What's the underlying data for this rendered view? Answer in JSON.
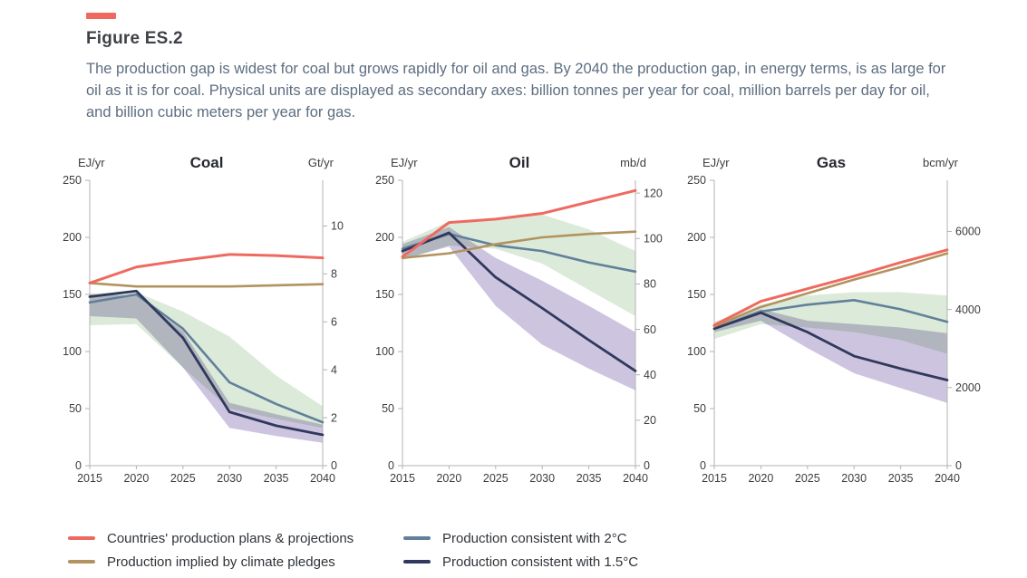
{
  "header": {
    "accent_color": "#ee6a5f",
    "title": "Figure ES.2",
    "description": "The production gap is widest for coal but grows rapidly for oil and gas. By 2040 the production gap, in energy terms, is as large for oil as it is for coal. Physical units are displayed as secondary axes: billion tonnes per year for coal, million barrels per day for oil, and billion cubic meters per year for gas."
  },
  "axis_style": {
    "line_color": "#b3b3b3",
    "text_color": "#3d3d3d"
  },
  "chart_data": [
    {
      "id": "coal",
      "type": "line",
      "title": "Coal",
      "left_axis": {
        "label": "EJ/yr",
        "ticks": [
          0,
          50,
          100,
          150,
          200,
          250
        ],
        "range": [
          0,
          250
        ]
      },
      "right_axis": {
        "label": "Gt/yr",
        "ticks": [
          0,
          2,
          4,
          6,
          8,
          10
        ],
        "ej_per_unit": 21.0
      },
      "x": {
        "years": [
          2015,
          2020,
          2025,
          2030,
          2035,
          2040
        ],
        "range": [
          2015,
          2040
        ]
      },
      "series": [
        {
          "key": "plans",
          "name": "Countries' production plans & projections",
          "color": "#ee6a60",
          "width": 3,
          "values": [
            160,
            174,
            180,
            185,
            184,
            182
          ]
        },
        {
          "key": "pledges",
          "name": "Production implied by climate pledges",
          "color": "#b2935f",
          "width": 2.6,
          "values": [
            160,
            157,
            157,
            157,
            158,
            159
          ]
        },
        {
          "key": "2c",
          "name": "Production consistent with 2°C",
          "color": "#62809b",
          "width": 2.6,
          "values": [
            143,
            150,
            120,
            73,
            54,
            38
          ]
        },
        {
          "key": "15c",
          "name": "Production consistent with 1.5°C",
          "color": "#30395c",
          "width": 2.8,
          "values": [
            148,
            153,
            112,
            47,
            35,
            27
          ]
        }
      ],
      "bands": [
        {
          "name": "2c-range",
          "color": "#dcead9",
          "upper": [
            151,
            152,
            135,
            113,
            79,
            52
          ],
          "lower": [
            123,
            124,
            86,
            50,
            41,
            33
          ]
        },
        {
          "name": "15c-range",
          "color": "#cdc5e0",
          "upper": [
            150,
            149,
            118,
            55,
            45,
            36
          ],
          "lower": [
            131,
            129,
            86,
            33,
            26,
            20
          ]
        }
      ]
    },
    {
      "id": "oil",
      "type": "line",
      "title": "Oil",
      "left_axis": {
        "label": "EJ/yr",
        "ticks": [
          0,
          50,
          100,
          150,
          200,
          250
        ],
        "range": [
          0,
          250
        ]
      },
      "right_axis": {
        "label": "mb/d",
        "ticks": [
          0,
          20,
          40,
          60,
          80,
          100,
          120
        ],
        "ej_per_unit": 1.99
      },
      "x": {
        "years": [
          2015,
          2020,
          2025,
          2030,
          2035,
          2040
        ],
        "range": [
          2015,
          2040
        ]
      },
      "series": [
        {
          "key": "plans",
          "name": "Countries' production plans & projections",
          "color": "#ee6a60",
          "width": 3,
          "values": [
            183,
            213,
            216,
            221,
            231,
            241
          ]
        },
        {
          "key": "pledges",
          "name": "Production implied by climate pledges",
          "color": "#b2935f",
          "width": 2.6,
          "values": [
            182,
            186,
            194,
            200,
            203,
            205
          ]
        },
        {
          "key": "2c",
          "name": "Production consistent with 2°C",
          "color": "#62809b",
          "width": 2.6,
          "values": [
            190,
            203,
            193,
            188,
            178,
            170
          ]
        },
        {
          "key": "15c",
          "name": "Production consistent with 1.5°C",
          "color": "#30395c",
          "width": 2.8,
          "values": [
            188,
            204,
            165,
            138,
            110,
            83
          ]
        }
      ],
      "bands": [
        {
          "name": "2c-range",
          "color": "#dcead9",
          "upper": [
            196,
            214,
            217,
            220,
            207,
            188
          ],
          "lower": [
            180,
            193,
            190,
            177,
            154,
            131
          ]
        },
        {
          "name": "15c-range",
          "color": "#cdc5e0",
          "upper": [
            194,
            209,
            182,
            162,
            140,
            117
          ],
          "lower": [
            181,
            192,
            140,
            106,
            85,
            66
          ]
        }
      ]
    },
    {
      "id": "gas",
      "type": "line",
      "title": "Gas",
      "left_axis": {
        "label": "EJ/yr",
        "ticks": [
          0,
          50,
          100,
          150,
          200,
          250
        ],
        "range": [
          0,
          250
        ]
      },
      "right_axis": {
        "label": "bcm/yr",
        "ticks": [
          0,
          2000,
          4000,
          6000
        ],
        "ej_per_unit": 0.0342
      },
      "x": {
        "years": [
          2015,
          2020,
          2025,
          2030,
          2035,
          2040
        ],
        "range": [
          2015,
          2040
        ]
      },
      "series": [
        {
          "key": "plans",
          "name": "Countries' production plans & projections",
          "color": "#ee6a60",
          "width": 3,
          "values": [
            123,
            144,
            155,
            166,
            178,
            189
          ]
        },
        {
          "key": "pledges",
          "name": "Production implied by climate pledges",
          "color": "#b2935f",
          "width": 2.6,
          "values": [
            122,
            139,
            151,
            163,
            174,
            186
          ]
        },
        {
          "key": "2c",
          "name": "Production consistent with 2°C",
          "color": "#62809b",
          "width": 2.6,
          "values": [
            120,
            135,
            141,
            145,
            137,
            126
          ]
        },
        {
          "key": "15c",
          "name": "Production consistent with 1.5°C",
          "color": "#30395c",
          "width": 2.8,
          "values": [
            120,
            134,
            117,
            96,
            85,
            75
          ]
        }
      ],
      "bands": [
        {
          "name": "2c-range",
          "color": "#dcead9",
          "upper": [
            126,
            141,
            149,
            152,
            152,
            149
          ],
          "lower": [
            111,
            124,
            121,
            117,
            110,
            98
          ]
        },
        {
          "name": "15c-range",
          "color": "#cdc5e0",
          "upper": [
            122,
            137,
            127,
            124,
            121,
            116
          ],
          "lower": [
            117,
            127,
            103,
            81,
            68,
            55
          ]
        }
      ]
    }
  ],
  "legend": {
    "items": [
      {
        "label": "Countries' production plans & projections",
        "color": "#ee6a60"
      },
      {
        "label": "Production consistent with 2°C",
        "color": "#62809b"
      },
      {
        "label": "Production implied by climate pledges",
        "color": "#b2935f"
      },
      {
        "label": "Production consistent with 1.5°C",
        "color": "#30395c"
      }
    ]
  }
}
